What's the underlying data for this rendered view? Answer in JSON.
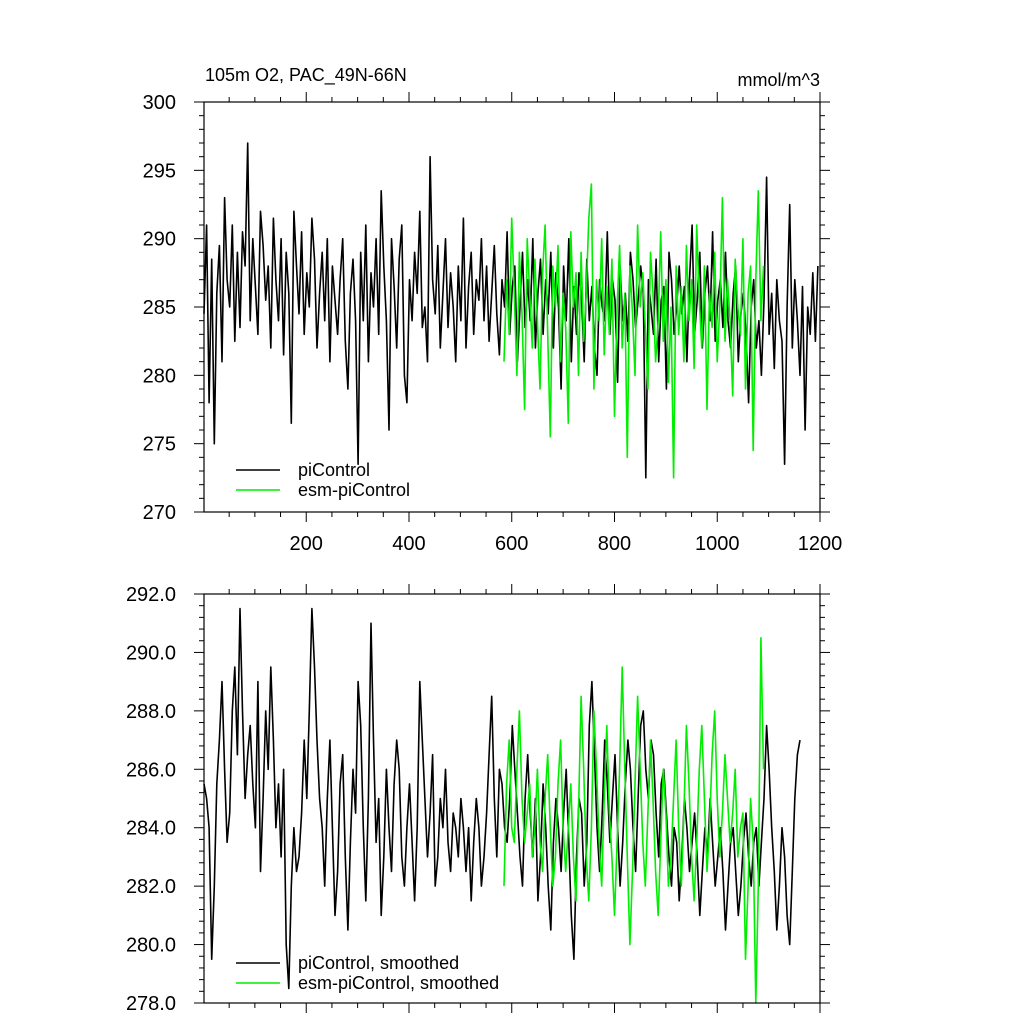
{
  "chart_data": [
    {
      "type": "line",
      "title": "105m O2, PAC_49N-66N",
      "units": "mmol/m^3",
      "xlabel": "",
      "ylabel": "",
      "xlim": [
        1,
        1200
      ],
      "ylim": [
        270,
        300
      ],
      "xticks": [
        200,
        400,
        600,
        800,
        1000,
        1200
      ],
      "yticks": [
        270,
        275,
        280,
        285,
        290,
        295,
        300
      ],
      "ytick_labels": [
        "270",
        "275",
        "280",
        "285",
        "290",
        "295",
        "300"
      ],
      "legend_position": "bottom-left",
      "grid": false,
      "colors": {
        "piControl": "#000000",
        "esm-piControl": "#00ee00"
      },
      "series": [
        {
          "name": "piControl",
          "color": "#000000",
          "x_start": 1,
          "x_step": 5,
          "values": [
            284.5,
            291.0,
            278.0,
            288.5,
            275.0,
            286.0,
            289.5,
            281.0,
            293.0,
            287.0,
            285.0,
            291.0,
            282.5,
            289.0,
            283.5,
            290.5,
            288.0,
            297.0,
            284.0,
            290.0,
            286.5,
            283.0,
            292.0,
            289.5,
            285.5,
            288.0,
            282.0,
            291.5,
            287.0,
            284.0,
            290.0,
            281.5,
            289.0,
            286.0,
            276.5,
            292.0,
            288.0,
            284.5,
            290.5,
            283.0,
            287.5,
            285.0,
            291.5,
            288.5,
            282.0,
            286.0,
            289.0,
            284.0,
            290.0,
            281.0,
            288.0,
            285.5,
            283.0,
            287.0,
            290.0,
            282.5,
            279.0,
            286.0,
            288.5,
            284.0,
            273.5,
            289.0,
            284.0,
            291.0,
            281.0,
            287.5,
            285.0,
            290.0,
            283.0,
            293.5,
            288.0,
            284.0,
            276.0,
            290.0,
            286.5,
            282.0,
            288.5,
            291.0,
            280.0,
            278.0,
            287.0,
            284.0,
            289.0,
            286.0,
            292.0,
            283.5,
            285.0,
            281.0,
            296.0,
            287.0,
            284.5,
            289.5,
            282.0,
            286.0,
            290.0,
            283.5,
            287.5,
            285.0,
            281.0,
            288.0,
            284.0,
            291.5,
            282.0,
            286.5,
            289.0,
            283.0,
            287.0,
            285.5,
            290.0,
            284.0,
            288.0,
            282.5,
            286.0,
            289.5,
            284.5,
            281.5,
            287.0,
            285.0,
            290.5,
            283.0,
            286.5,
            288.0,
            281.0,
            285.0,
            289.0,
            283.5,
            287.0,
            284.0,
            290.0,
            282.0,
            286.0,
            288.5,
            283.0,
            287.0,
            284.5,
            289.0,
            282.0,
            287.5,
            285.0,
            279.0,
            288.0,
            284.0,
            290.0,
            281.0,
            286.5,
            283.0,
            287.5,
            285.5,
            281.0,
            288.5,
            284.0,
            286.5,
            282.0,
            280.0,
            287.0,
            285.0,
            284.0,
            290.5,
            283.0,
            287.0,
            285.5,
            279.5,
            288.0,
            284.0,
            286.0,
            282.5,
            289.0,
            287.0,
            283.5,
            285.5,
            288.0,
            286.0,
            272.5,
            287.0,
            285.0,
            283.0,
            288.5,
            281.0,
            285.5,
            286.5,
            279.0,
            289.0,
            287.0,
            283.0,
            285.0,
            288.0,
            284.5,
            286.5,
            281.0,
            287.0,
            291.0,
            283.0,
            285.5,
            289.0,
            282.0,
            286.0,
            288.0,
            284.0,
            290.5,
            282.5,
            285.5,
            287.0,
            283.5,
            289.0,
            284.0,
            282.0,
            286.0,
            288.0,
            281.0,
            284.5,
            286.0,
            283.0,
            278.0,
            285.0,
            287.0,
            282.0,
            284.0,
            280.0,
            285.5,
            294.5,
            283.0,
            286.0,
            280.5,
            287.0,
            284.0,
            282.5,
            273.5,
            285.0,
            292.5,
            282.0,
            287.0,
            284.0,
            280.0,
            286.5,
            276.0,
            285.0,
            283.0,
            287.5,
            282.5,
            288.0
          ]
        },
        {
          "name": "esm-piControl",
          "color": "#00ee00",
          "x_start": 585,
          "x_step": 5,
          "values": [
            281.0,
            287.0,
            283.0,
            291.5,
            286.0,
            280.0,
            289.0,
            284.5,
            277.5,
            290.0,
            286.0,
            282.0,
            288.5,
            284.0,
            279.0,
            287.5,
            291.0,
            283.0,
            275.5,
            288.0,
            285.0,
            289.5,
            281.0,
            286.0,
            283.5,
            276.5,
            290.5,
            285.0,
            287.5,
            280.0,
            289.0,
            282.5,
            286.0,
            291.5,
            294.0,
            279.0,
            287.0,
            284.0,
            290.0,
            281.5,
            286.5,
            283.0,
            288.5,
            277.0,
            285.0,
            289.5,
            282.0,
            286.0,
            274.0,
            288.0,
            284.5,
            280.0,
            291.0,
            285.0,
            287.5,
            283.5,
            279.0,
            289.0,
            286.0,
            281.0,
            284.0,
            290.5,
            282.5,
            287.0,
            279.5,
            285.0,
            272.5,
            288.0,
            283.0,
            286.5,
            281.0,
            289.5,
            284.0,
            287.0,
            280.5,
            291.0,
            285.5,
            282.0,
            288.0,
            277.5,
            286.0,
            283.5,
            289.0,
            281.0,
            285.0,
            293.0,
            282.5,
            287.0,
            284.0,
            278.5,
            288.5,
            285.0,
            283.0,
            290.0,
            279.0,
            286.0,
            288.0,
            274.5,
            287.0,
            293.5,
            284.0,
            288.0
          ]
        }
      ]
    },
    {
      "type": "line",
      "title": "",
      "xlabel": "",
      "ylabel": "",
      "xlim": [
        1,
        1200
      ],
      "ylim": [
        278,
        292
      ],
      "xticks": [
        200,
        400,
        600,
        800,
        1000,
        1200
      ],
      "yticks": [
        278,
        280,
        282,
        284,
        286,
        288,
        290,
        292
      ],
      "ytick_labels": [
        "278.0",
        "280.0",
        "282.0",
        "284.0",
        "286.0",
        "288.0",
        "290.0",
        "292.0"
      ],
      "legend_position": "bottom-left",
      "grid": false,
      "series": [
        {
          "name": "piControl, smoothed",
          "color": "#000000",
          "x_start": 1,
          "x_step": 5,
          "values": [
            285.5,
            285.0,
            284.0,
            279.5,
            282.0,
            285.5,
            287.0,
            289.0,
            286.0,
            283.5,
            284.5,
            288.0,
            289.5,
            286.5,
            291.5,
            288.0,
            285.0,
            286.5,
            287.5,
            285.5,
            284.0,
            289.0,
            282.5,
            285.0,
            288.0,
            286.0,
            289.5,
            287.0,
            284.0,
            285.5,
            283.0,
            286.0,
            280.0,
            278.5,
            282.0,
            284.0,
            282.5,
            283.0,
            284.5,
            287.0,
            285.0,
            288.0,
            291.5,
            289.5,
            287.0,
            285.0,
            284.0,
            282.0,
            285.0,
            287.0,
            284.0,
            281.0,
            282.5,
            285.5,
            286.5,
            283.0,
            280.5,
            283.5,
            286.0,
            284.5,
            289.0,
            287.5,
            284.0,
            281.5,
            285.0,
            291.0,
            287.0,
            283.5,
            285.0,
            281.0,
            283.0,
            286.0,
            284.0,
            282.5,
            285.5,
            287.0,
            286.0,
            283.0,
            282.0,
            284.0,
            285.5,
            283.5,
            281.5,
            284.0,
            289.0,
            287.0,
            285.0,
            283.0,
            284.5,
            286.5,
            282.0,
            283.0,
            285.0,
            284.0,
            286.0,
            283.5,
            282.5,
            284.5,
            284.0,
            283.0,
            285.0,
            284.0,
            282.5,
            284.0,
            281.5,
            283.5,
            285.0,
            284.0,
            282.0,
            283.0,
            284.5,
            286.5,
            288.5,
            285.0,
            283.0,
            286.0,
            285.5,
            284.0,
            283.5,
            285.0,
            287.5,
            286.0,
            284.5,
            283.0,
            282.0,
            285.0,
            286.5,
            284.5,
            283.0,
            285.0,
            281.5,
            283.0,
            285.5,
            284.0,
            282.0,
            280.5,
            283.5,
            285.0,
            284.0,
            282.5,
            284.5,
            286.0,
            283.5,
            281.0,
            279.5,
            283.0,
            285.0,
            284.5,
            282.0,
            283.5,
            287.5,
            289.0,
            286.5,
            284.0,
            282.5,
            284.5,
            287.0,
            285.5,
            283.5,
            285.0,
            286.5,
            284.0,
            282.0,
            283.5,
            285.5,
            287.0,
            286.0,
            284.0,
            282.5,
            285.0,
            287.5,
            288.0,
            286.0,
            285.0,
            287.0,
            286.5,
            284.5,
            283.0,
            285.5,
            286.0,
            284.5,
            283.0,
            282.0,
            284.0,
            283.5,
            281.5,
            283.0,
            285.0,
            284.0,
            282.5,
            283.5,
            284.5,
            283.0,
            281.0,
            282.5,
            284.0,
            283.0,
            285.0,
            283.5,
            282.0,
            283.0,
            284.0,
            282.5,
            280.5,
            282.0,
            283.5,
            284.0,
            282.5,
            281.0,
            282.0,
            283.5,
            284.5,
            283.0,
            282.0,
            283.5,
            284.0,
            282.0,
            283.5,
            285.0,
            287.5,
            286.0,
            284.0,
            282.5,
            280.5,
            282.0,
            284.0,
            283.0,
            281.0,
            280.0,
            282.5,
            285.0,
            286.5,
            287.0
          ]
        },
        {
          "name": "esm-piControl, smoothed",
          "color": "#00ee00",
          "x_start": 585,
          "x_step": 5,
          "values": [
            282.0,
            285.5,
            287.0,
            284.0,
            283.5,
            286.0,
            288.0,
            285.0,
            283.5,
            284.5,
            285.5,
            283.0,
            284.0,
            286.0,
            283.5,
            282.5,
            285.0,
            286.5,
            284.0,
            282.0,
            283.0,
            285.5,
            287.0,
            284.0,
            282.5,
            284.0,
            285.5,
            283.0,
            281.5,
            284.5,
            288.5,
            286.0,
            283.0,
            281.5,
            284.0,
            288.0,
            286.0,
            283.5,
            282.0,
            285.0,
            287.5,
            284.5,
            283.0,
            281.0,
            283.5,
            286.0,
            289.5,
            286.0,
            283.0,
            280.0,
            282.5,
            285.5,
            288.5,
            286.0,
            283.5,
            282.0,
            284.5,
            287.0,
            285.0,
            282.5,
            281.0,
            283.5,
            286.0,
            284.5,
            282.0,
            283.0,
            285.0,
            287.0,
            284.0,
            282.0,
            284.5,
            287.5,
            285.5,
            283.0,
            281.5,
            283.5,
            286.0,
            287.5,
            285.0,
            282.5,
            284.0,
            286.5,
            288.0,
            285.0,
            283.0,
            284.5,
            286.5,
            285.0,
            283.5,
            284.5,
            286.0,
            283.0,
            284.0,
            284.5,
            279.5,
            282.0,
            285.0,
            283.5,
            278.0,
            282.0,
            290.5,
            286.0
          ]
        }
      ]
    }
  ]
}
